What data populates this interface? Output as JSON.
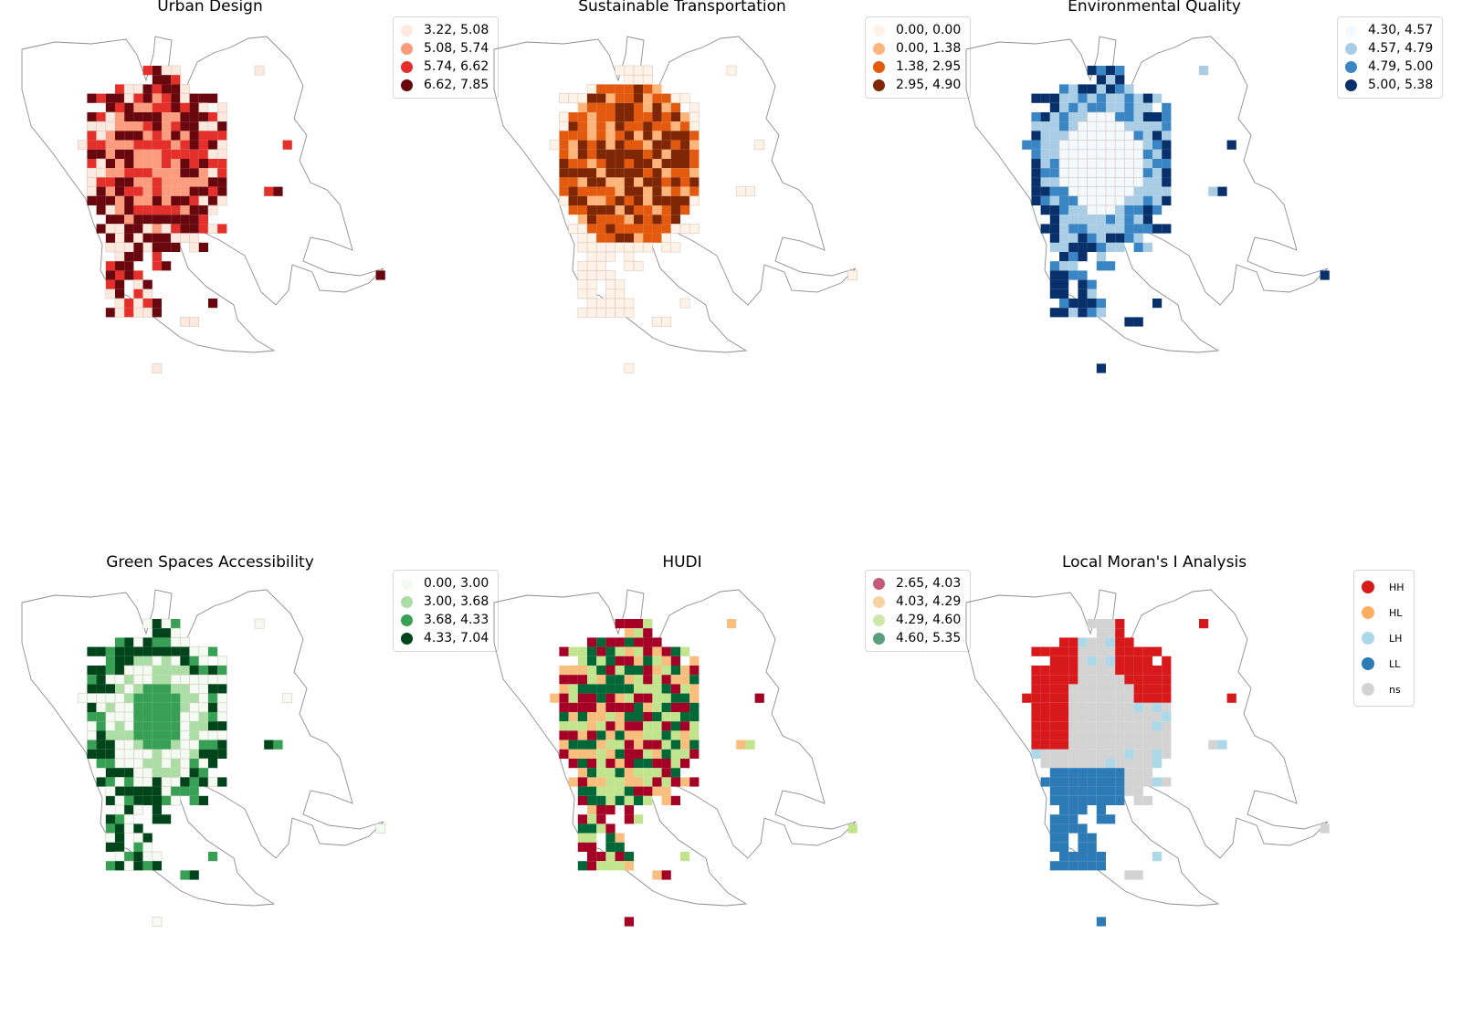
{
  "panels": [
    {
      "id": "urban-design",
      "title": "Urban Design",
      "legend": [
        {
          "label": "3.22, 5.08",
          "color": "#fee9df"
        },
        {
          "label": "5.08, 5.74",
          "color": "#fb9c7f"
        },
        {
          "label": "5.74, 6.62",
          "color": "#e3302b"
        },
        {
          "label": "6.62, 7.85",
          "color": "#68070e"
        }
      ]
    },
    {
      "id": "sustainable-transportation",
      "title": "Sustainable Transportation",
      "legend": [
        {
          "label": "0.00, 0.00",
          "color": "#fff2e6"
        },
        {
          "label": "0.00, 1.38",
          "color": "#fdb57b"
        },
        {
          "label": "1.38, 2.95",
          "color": "#e35a0f"
        },
        {
          "label": "2.95, 4.90",
          "color": "#7f2704"
        }
      ]
    },
    {
      "id": "environmental-quality",
      "title": "Environmental Quality",
      "legend": [
        {
          "label": "4.30, 4.57",
          "color": "#f4f9fe"
        },
        {
          "label": "4.57, 4.79",
          "color": "#a8cde5"
        },
        {
          "label": "4.79, 5.00",
          "color": "#3a85c3"
        },
        {
          "label": "5.00, 5.38",
          "color": "#08306b"
        }
      ]
    },
    {
      "id": "green-spaces-accessibility",
      "title": "Green Spaces Accessibility",
      "legend": [
        {
          "label": "0.00, 3.00",
          "color": "#f4fbf2"
        },
        {
          "label": "3.00, 3.68",
          "color": "#abdda5"
        },
        {
          "label": "3.68, 4.33",
          "color": "#38a055"
        },
        {
          "label": "4.33, 7.04",
          "color": "#00441b"
        }
      ]
    },
    {
      "id": "hudi",
      "title": "HUDI",
      "legend": [
        {
          "label": "2.65, 4.03",
          "color": "#c45a7a"
        },
        {
          "label": "4.03, 4.29",
          "color": "#f8d2a3"
        },
        {
          "label": "4.29, 4.60",
          "color": "#cfe8a9"
        },
        {
          "label": "4.60, 5.35",
          "color": "#5a9f7c"
        }
      ],
      "fill_colors": [
        "#a50026",
        "#f8be7d",
        "#c3e48e",
        "#006837"
      ]
    },
    {
      "id": "local-morans-i",
      "title": "Local Moran's I Analysis",
      "legend": [
        {
          "label": "HH",
          "color": "#d7191c"
        },
        {
          "label": "HL",
          "color": "#fdae61"
        },
        {
          "label": "LH",
          "color": "#abd9e9"
        },
        {
          "label": "LL",
          "color": "#2c7bb6"
        },
        {
          "label": "ns",
          "color": "#d3d3d3"
        }
      ]
    }
  ]
}
